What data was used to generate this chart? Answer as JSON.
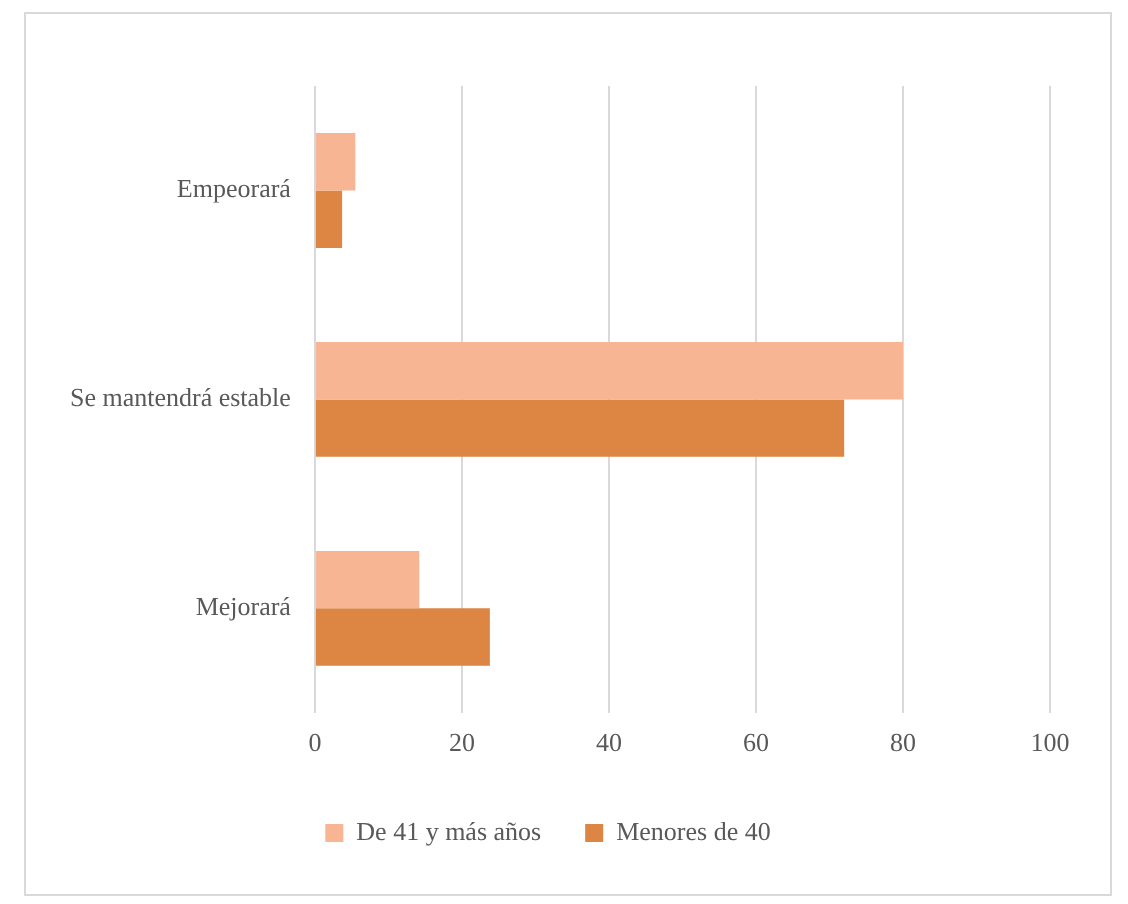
{
  "chart_data": {
    "type": "bar",
    "orientation": "horizontal",
    "categories": [
      "Empeorará",
      "Se mantendrá estable",
      "Mejorará"
    ],
    "series": [
      {
        "name": "De 41 y más años",
        "color": "#f8b593",
        "values": [
          5.5,
          80,
          14.2
        ]
      },
      {
        "name": "Menores de 40",
        "color": "#dd8542",
        "values": [
          3.7,
          72,
          23.8
        ]
      }
    ],
    "xlim": [
      0,
      100
    ],
    "xticks": [
      0,
      20,
      40,
      60,
      80,
      100
    ],
    "grid": "x",
    "legend": "bottom"
  }
}
